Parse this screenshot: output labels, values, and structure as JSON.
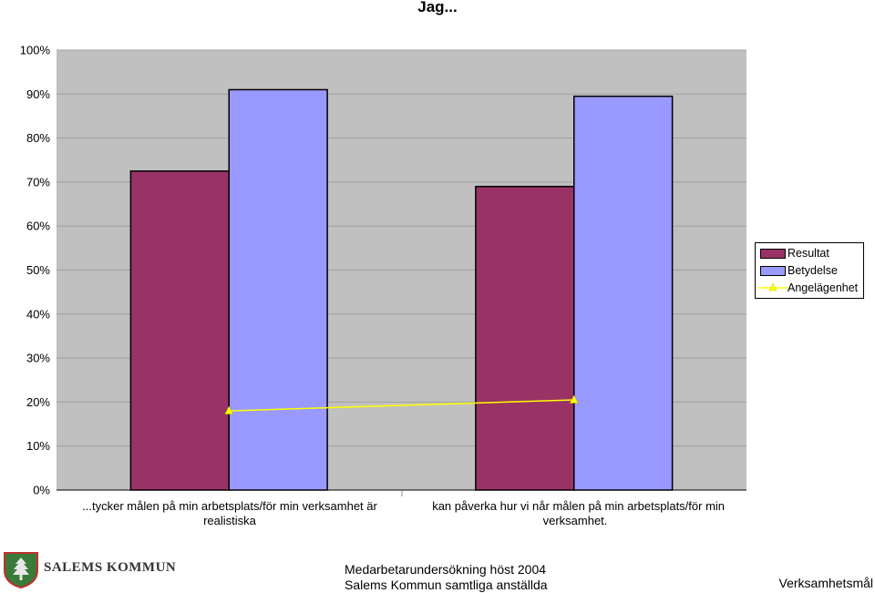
{
  "chart_data": {
    "type": "bar",
    "title": "Jag...",
    "categories": [
      "...tycker målen på min arbetsplats/för min verksamhet är realistiska",
      "  kan påverka hur vi når målen på min arbetsplats/för min verksamhet."
    ],
    "series": [
      {
        "name": "Resultat",
        "type": "bar",
        "color": "#993366",
        "values": [
          72.5,
          69
        ]
      },
      {
        "name": "Betydelse",
        "type": "bar",
        "color": "#9999ff",
        "values": [
          91,
          89.5
        ]
      },
      {
        "name": "Angelägenhet",
        "type": "line",
        "color": "#ffff00",
        "marker": "triangle",
        "values": [
          18,
          20.5
        ]
      }
    ],
    "ylim": [
      0,
      100
    ],
    "yticks": [
      "0%",
      "10%",
      "20%",
      "30%",
      "40%",
      "50%",
      "60%",
      "70%",
      "80%",
      "90%",
      "100%"
    ],
    "grid": true,
    "plot_background": "#c0c0c0",
    "legend_position": "right"
  },
  "footer": {
    "logo_text": "SALEMS KOMMUN",
    "center_line1": "Medarbetarundersökning höst 2004",
    "center_line2": "Salems Kommun samtliga anställda",
    "right_text": "Verksamhetsmål"
  }
}
